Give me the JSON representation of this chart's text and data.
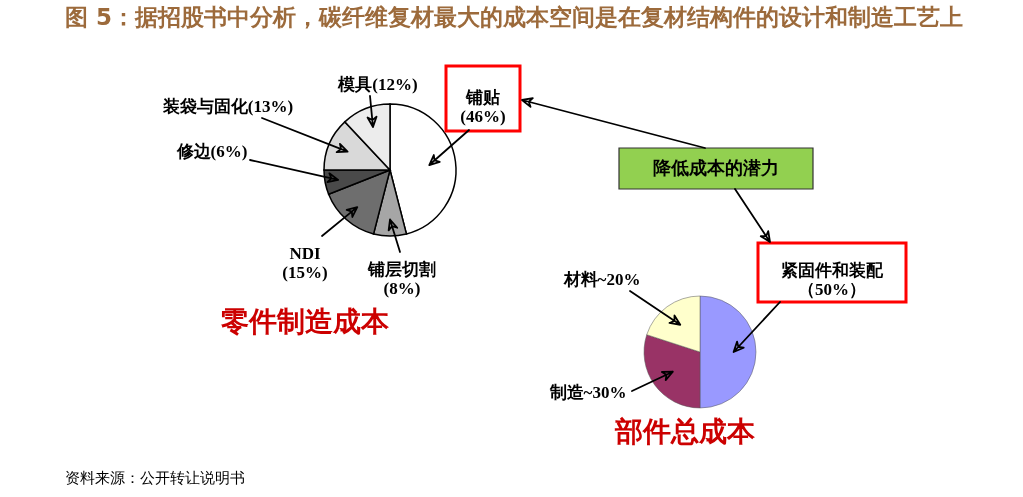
{
  "chart_data": [
    {
      "type": "pie",
      "title": "零件制造成本",
      "categories": [
        "铺贴",
        "铺层切割",
        "NDI",
        "修边",
        "装袋与固化",
        "模具"
      ],
      "values": [
        46,
        8,
        15,
        6,
        13,
        12
      ],
      "value_labels": [
        "(46%)",
        "(8%)",
        "(15%)",
        "(6%)",
        "(13%)",
        "(12%)"
      ],
      "colors": [
        "#ffffff",
        "#a6a6a6",
        "#6e6e6e",
        "#4a4a4a",
        "#d9d9d9",
        "#ececec"
      ],
      "annotations": [
        "图 5：据招股书中分析，碳纤维复材最大的成本空间是在复材结构件的设计和制造工艺上",
        "资料来源：公开转让说明书"
      ]
    },
    {
      "type": "pie",
      "title": "部件总成本",
      "categories": [
        "紧固件和装配",
        "制造",
        "材料"
      ],
      "values": [
        50,
        30,
        20
      ],
      "value_labels": [
        "（50%）",
        "~30%",
        "~20%"
      ],
      "colors": [
        "#9999ff",
        "#993366",
        "#ffffcc"
      ],
      "annotations": [
        "降低成本的潜力"
      ]
    }
  ]
}
